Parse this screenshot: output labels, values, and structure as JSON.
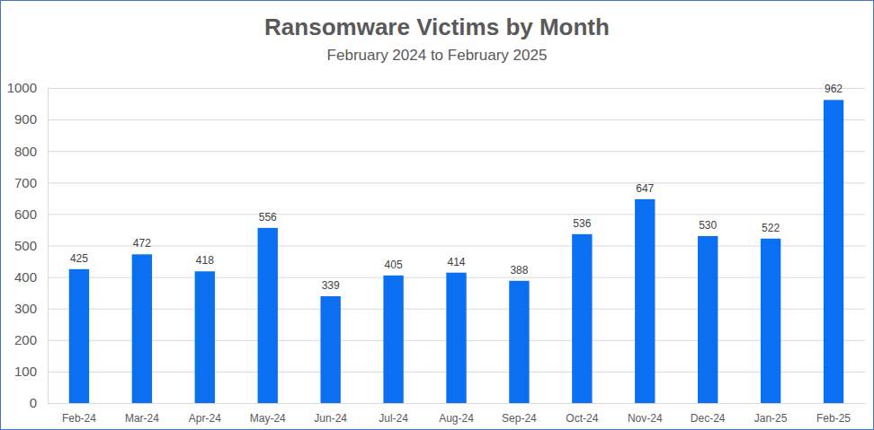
{
  "chart_data": {
    "type": "bar",
    "title": "Ransomware Victims by Month",
    "subtitle": "February 2024 to February 2025",
    "categories": [
      "Feb-24",
      "Mar-24",
      "Apr-24",
      "May-24",
      "Jun-24",
      "Jul-24",
      "Aug-24",
      "Sep-24",
      "Oct-24",
      "Nov-24",
      "Dec-24",
      "Jan-25",
      "Feb-25"
    ],
    "values": [
      425,
      472,
      418,
      556,
      339,
      405,
      414,
      388,
      536,
      647,
      530,
      522,
      962
    ],
    "color": "#0a6ff0",
    "ylim": [
      0,
      1000
    ],
    "yticks": [
      0,
      100,
      200,
      300,
      400,
      500,
      600,
      700,
      800,
      900,
      1000
    ],
    "grid": true,
    "data_labels": true
  }
}
